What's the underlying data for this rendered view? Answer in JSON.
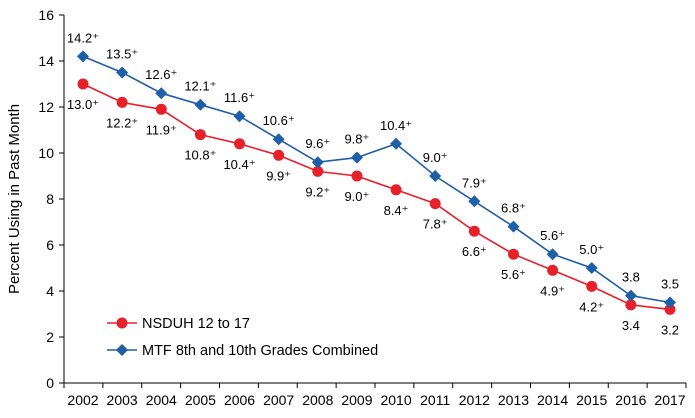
{
  "chart_data": {
    "type": "line",
    "title": "",
    "xlabel": "",
    "ylabel": "Percent Using in Past Month",
    "ylim": [
      0,
      16
    ],
    "yticks": [
      "0",
      "2",
      "4",
      "6",
      "8",
      "10",
      "12",
      "14",
      "16"
    ],
    "categories": [
      "2002",
      "2003",
      "2004",
      "2005",
      "2006",
      "2007",
      "2008",
      "2009",
      "2010",
      "2011",
      "2012",
      "2013",
      "2014",
      "2015",
      "2016",
      "2017"
    ],
    "grid": false,
    "legend_position": "bottom-left",
    "series": [
      {
        "name": "NSDUH 12 to 17",
        "color": "#e8202a",
        "marker": "circle",
        "values": [
          13.0,
          12.2,
          11.9,
          10.8,
          10.4,
          9.9,
          9.2,
          9.0,
          8.4,
          7.8,
          6.6,
          5.6,
          4.9,
          4.2,
          3.4,
          3.2
        ],
        "labels": [
          "13.0⁺",
          "12.2⁺",
          "11.9⁺",
          "10.8⁺",
          "10.4⁺",
          "9.9⁺",
          "9.2⁺",
          "9.0⁺",
          "8.4⁺",
          "7.8⁺",
          "6.6⁺",
          "5.6⁺",
          "4.9⁺",
          "4.2⁺",
          "3.4",
          "3.2"
        ]
      },
      {
        "name": "MTF 8th and 10th Grades Combined",
        "color": "#1f5fa8",
        "marker": "diamond",
        "values": [
          14.2,
          13.5,
          12.6,
          12.1,
          11.6,
          10.6,
          9.6,
          9.8,
          10.4,
          9.0,
          7.9,
          6.8,
          5.6,
          5.0,
          3.8,
          3.5
        ],
        "labels": [
          "14.2⁺",
          "13.5⁺",
          "12.6⁺",
          "12.1⁺",
          "11.6⁺",
          "10.6⁺",
          "9.6⁺",
          "9.8⁺",
          "10.4⁺",
          "9.0⁺",
          "7.9⁺",
          "6.8⁺",
          "5.6⁺",
          "5.0⁺",
          "3.8",
          "3.5"
        ]
      }
    ]
  }
}
